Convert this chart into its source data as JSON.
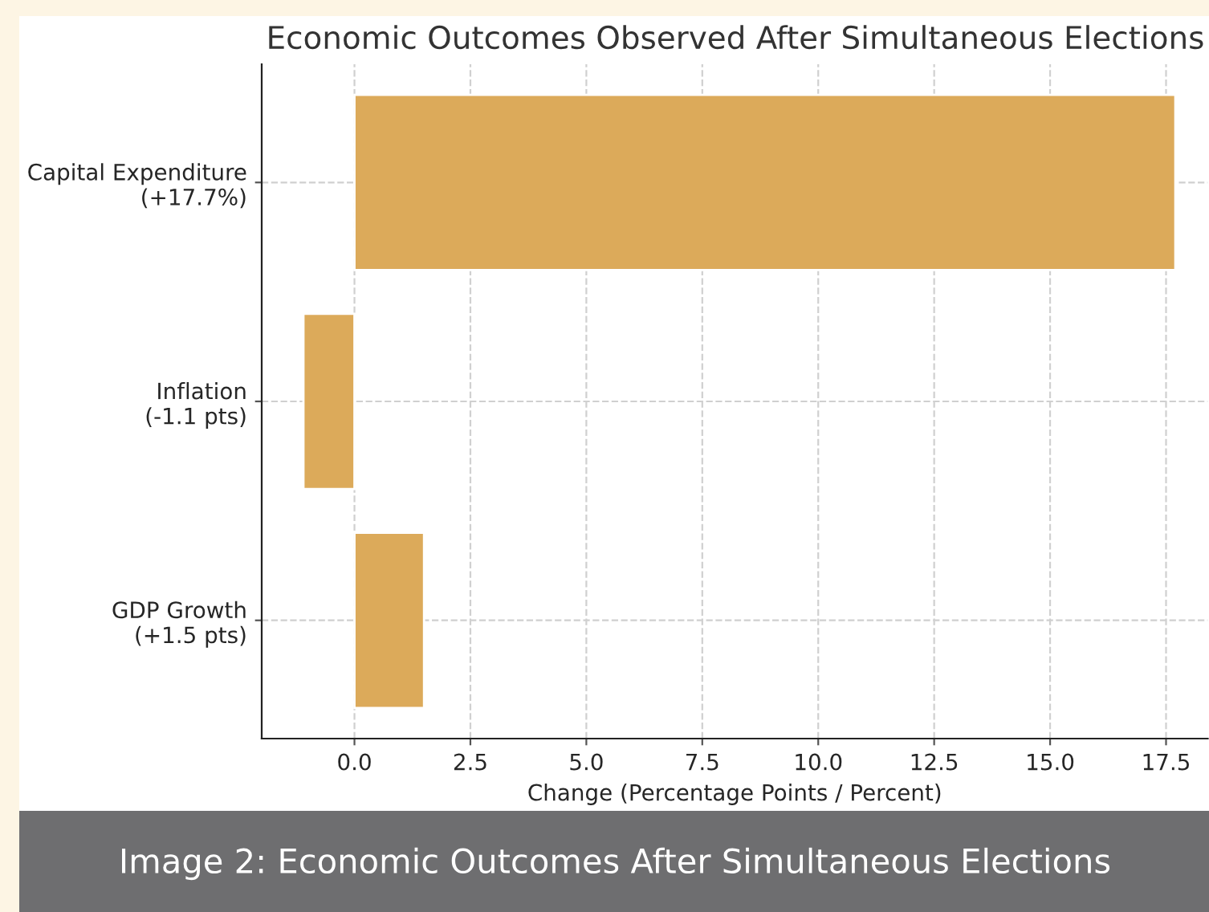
{
  "chart_data": {
    "type": "bar",
    "orientation": "horizontal",
    "title": "Economic Outcomes Observed After Simultaneous Elections",
    "xlabel": "Change (Percentage Points / Percent)",
    "categories": [
      "Capital Expenditure\n(+17.7%)",
      "Inflation\n(-1.1 pts)",
      "GDP Growth\n(+1.5 pts)"
    ],
    "values": [
      17.7,
      -1.1,
      1.5
    ],
    "color": "#dcaa5a",
    "xlim": [
      -2.0,
      18.4
    ],
    "xticks": [
      {
        "value": 0,
        "label": "0.0"
      },
      {
        "value": 2.5,
        "label": "2.5"
      },
      {
        "value": 5,
        "label": "5.0"
      },
      {
        "value": 7.5,
        "label": "7.5"
      },
      {
        "value": 10,
        "label": "10.0"
      },
      {
        "value": 12.5,
        "label": "12.5"
      },
      {
        "value": 15,
        "label": "15.0"
      },
      {
        "value": 17.5,
        "label": "17.5"
      }
    ],
    "grid": true,
    "annotations": [
      "Image 2: Economic Outcomes After Simultaneous Elections"
    ]
  }
}
